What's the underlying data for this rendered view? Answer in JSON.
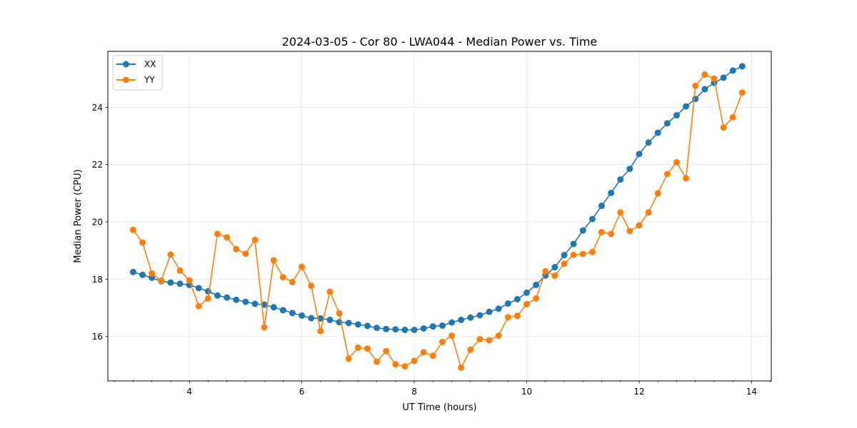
{
  "chart_data": {
    "type": "line",
    "title": "2024-03-05 - Cor 80 - LWA044 - Median Power vs. Time",
    "xlabel": "UT Time (hours)",
    "ylabel": "Median Power (CPU)",
    "xlim": [
      2.55,
      14.35
    ],
    "ylim": [
      14.45,
      25.95
    ],
    "xticks": [
      4,
      6,
      8,
      10,
      12,
      14
    ],
    "xtick_labels": [
      "4",
      "6",
      "8",
      "10",
      "12",
      "14"
    ],
    "xminor_step": 0.333333,
    "yticks": [
      16,
      18,
      20,
      22,
      24
    ],
    "ytick_labels": [
      "16",
      "18",
      "20",
      "22",
      "24"
    ],
    "grid": true,
    "legend_position": "top-left",
    "x": [
      3.0,
      3.167,
      3.333,
      3.5,
      3.667,
      3.833,
      4.0,
      4.167,
      4.333,
      4.5,
      4.667,
      4.833,
      5.0,
      5.167,
      5.333,
      5.5,
      5.667,
      5.833,
      6.0,
      6.167,
      6.333,
      6.5,
      6.667,
      6.833,
      7.0,
      7.167,
      7.333,
      7.5,
      7.667,
      7.833,
      8.0,
      8.167,
      8.333,
      8.5,
      8.667,
      8.833,
      9.0,
      9.167,
      9.333,
      9.5,
      9.667,
      9.833,
      10.0,
      10.167,
      10.333,
      10.5,
      10.667,
      10.833,
      11.0,
      11.167,
      11.333,
      11.5,
      11.667,
      11.833,
      12.0,
      12.167,
      12.333,
      12.5,
      12.667,
      12.833,
      13.0,
      13.167,
      13.333,
      13.5,
      13.667,
      13.833
    ],
    "series": [
      {
        "name": "XX",
        "color": "#1f77b4",
        "values": [
          18.25,
          18.15,
          18.05,
          17.93,
          17.88,
          17.84,
          17.8,
          17.69,
          17.58,
          17.43,
          17.36,
          17.28,
          17.21,
          17.14,
          17.11,
          17.02,
          16.92,
          16.82,
          16.73,
          16.64,
          16.63,
          16.58,
          16.5,
          16.47,
          16.42,
          16.37,
          16.3,
          16.26,
          16.25,
          16.23,
          16.23,
          16.28,
          16.35,
          16.38,
          16.49,
          16.58,
          16.66,
          16.74,
          16.86,
          16.97,
          17.15,
          17.3,
          17.53,
          17.8,
          18.13,
          18.42,
          18.84,
          19.23,
          19.7,
          20.1,
          20.56,
          21.01,
          21.48,
          21.85,
          22.37,
          22.77,
          23.11,
          23.44,
          23.72,
          24.03,
          24.29,
          24.63,
          24.85,
          25.03,
          25.28,
          25.43
        ]
      },
      {
        "name": "YY",
        "color": "#ff7f0e",
        "values": [
          19.72,
          19.28,
          18.2,
          17.95,
          18.86,
          18.3,
          17.96,
          17.06,
          17.33,
          19.58,
          19.46,
          19.05,
          18.89,
          19.37,
          16.32,
          18.66,
          18.07,
          17.9,
          18.43,
          17.77,
          16.19,
          17.56,
          16.81,
          15.23,
          15.61,
          15.58,
          15.12,
          15.49,
          15.03,
          14.96,
          15.15,
          15.45,
          15.33,
          15.81,
          16.03,
          14.91,
          15.54,
          15.91,
          15.87,
          16.03,
          16.67,
          16.72,
          17.13,
          17.33,
          18.28,
          18.12,
          18.54,
          18.85,
          18.88,
          18.95,
          19.64,
          19.58,
          20.33,
          19.68,
          19.88,
          20.33,
          21.0,
          21.67,
          22.08,
          21.52,
          24.75,
          25.14,
          25.0,
          23.29,
          23.65,
          24.51
        ]
      }
    ]
  }
}
